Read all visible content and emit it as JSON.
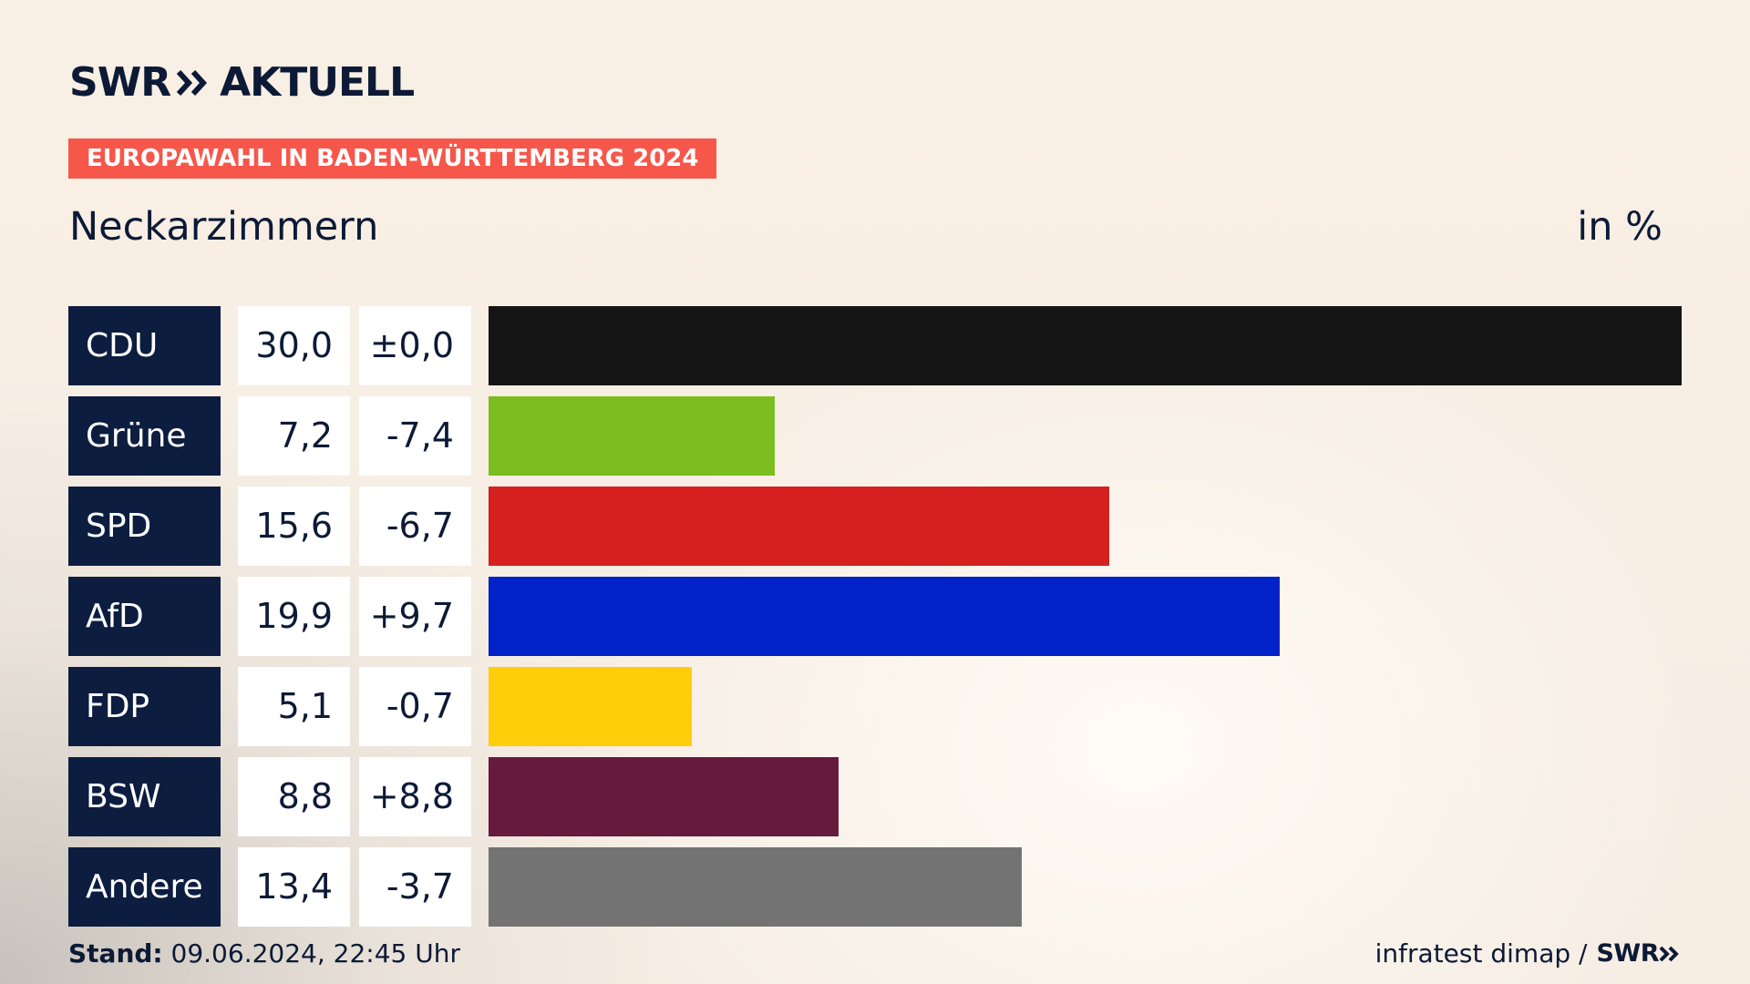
{
  "brand": {
    "left": "SWR",
    "right": "AKTUELL",
    "color": "#0c1a36"
  },
  "tag": {
    "text": "EUROPAWAHL IN BADEN-WÜRTTEMBERG 2024",
    "color": "#f6574a"
  },
  "region": "Neckarzimmern",
  "unit": "in %",
  "footer": {
    "stand_label": "Stand:",
    "stand_value": "09.06.2024, 22:45 Uhr",
    "source": "infratest dimap /",
    "source_brand": "SWR"
  },
  "chart_data": {
    "type": "bar",
    "orientation": "horizontal",
    "categories": [
      "CDU",
      "Grüne",
      "SPD",
      "AfD",
      "FDP",
      "BSW",
      "Andere"
    ],
    "values": [
      30.0,
      7.2,
      15.6,
      19.9,
      5.1,
      8.8,
      13.4
    ],
    "values_label": [
      "30,0",
      "7,2",
      "15,6",
      "19,9",
      "5,1",
      "8,8",
      "13,4"
    ],
    "diffs": [
      "±0,0",
      "-7,4",
      "-6,7",
      "+9,7",
      "-0,7",
      "+8,8",
      "-3,7"
    ],
    "colors": [
      "#141414",
      "#7cbd1f",
      "#d61f1f",
      "#0022c8",
      "#ffcd0a",
      "#661a3d",
      "#737373"
    ],
    "xlim": [
      0,
      30
    ],
    "grid": false,
    "legend": "none"
  }
}
